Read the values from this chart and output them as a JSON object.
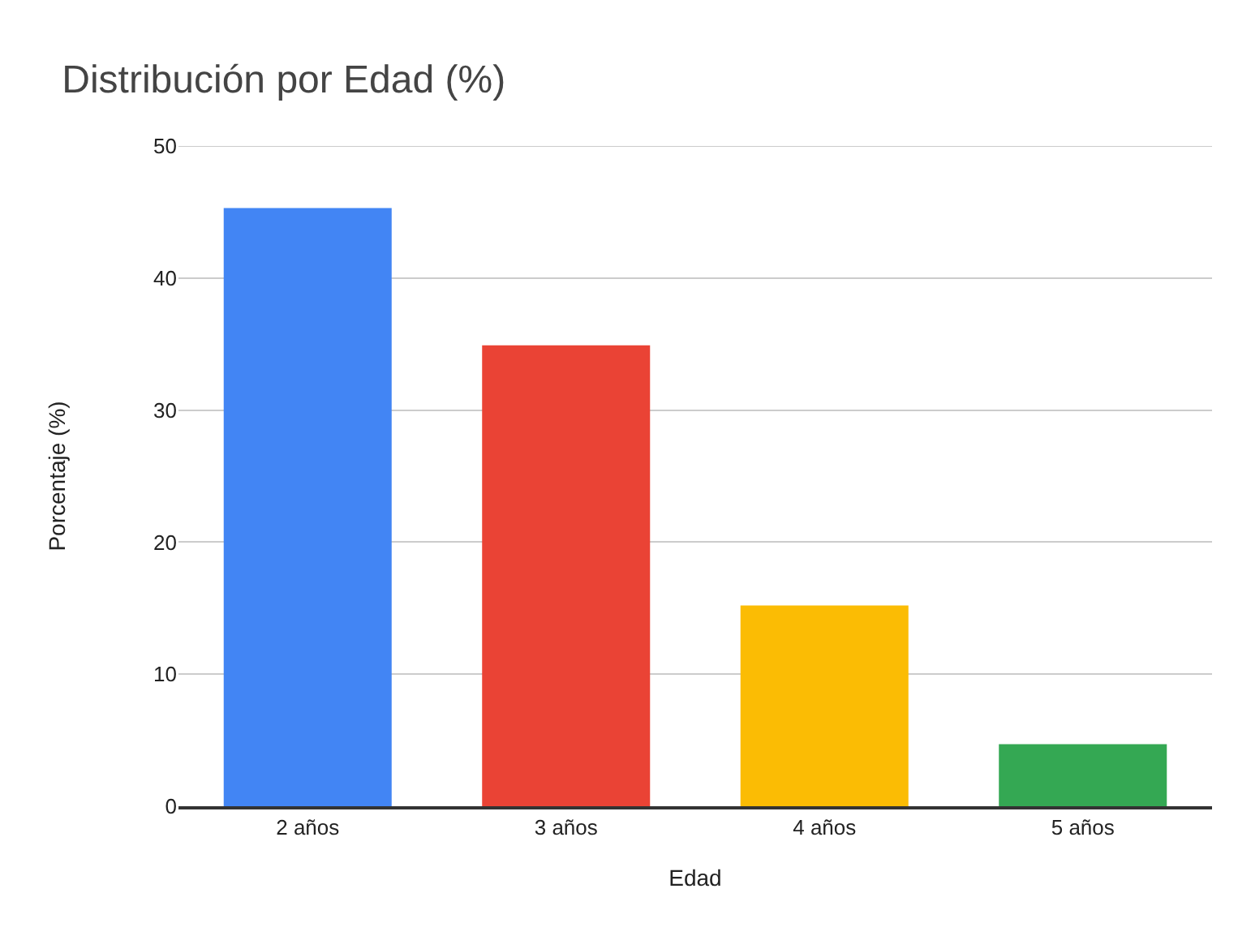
{
  "chart_data": {
    "type": "bar",
    "title": "Distribución por Edad (%)",
    "xlabel": "Edad",
    "ylabel": "Porcentaje (%)",
    "categories": [
      "2 años",
      "3 años",
      "4 años",
      "5 años"
    ],
    "values": [
      45.3,
      34.9,
      15.2,
      4.7
    ],
    "colors": [
      "#4285f4",
      "#ea4335",
      "#fbbc04",
      "#34a853"
    ],
    "ylim": [
      0,
      50
    ],
    "yticks": [
      0,
      10,
      20,
      30,
      40,
      50
    ],
    "grid": "y"
  }
}
